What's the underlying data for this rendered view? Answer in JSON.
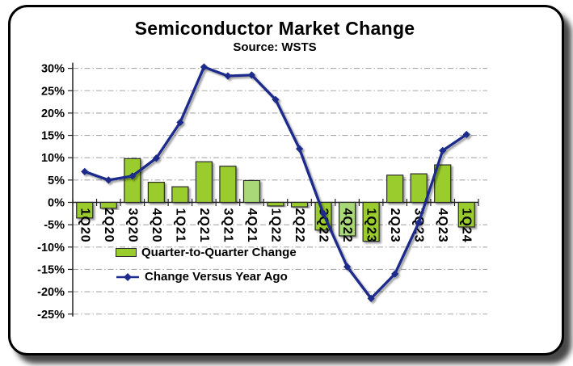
{
  "chart_data": {
    "type": "combo",
    "title": "Semiconductor Market Change",
    "subtitle": "Source: WSTS",
    "categories": [
      "1Q20",
      "2Q20",
      "3Q20",
      "4Q20",
      "1Q21",
      "2Q21",
      "3Q21",
      "4Q21",
      "1Q22",
      "2Q22",
      "3Q22",
      "4Q22",
      "1Q23",
      "2Q23",
      "3Q23",
      "4Q23",
      "1Q24"
    ],
    "series": [
      {
        "name": "Quarter-to-Quarter Change",
        "type": "bar",
        "values": [
          -3.5,
          -1.3,
          9.8,
          4.5,
          3.5,
          9.1,
          8.1,
          4.9,
          -0.8,
          -1.0,
          -6.2,
          -7.5,
          -8.7,
          6.1,
          6.4,
          8.4,
          -5.5
        ],
        "color": "#9ACC2E",
        "light_color": "#A8D877",
        "light_value_indexes": [
          7,
          11
        ],
        "border_color": "#2b2b2b"
      },
      {
        "name": "Change Versus Year Ago",
        "type": "line",
        "values": [
          6.9,
          5.0,
          5.9,
          9.9,
          17.9,
          30.3,
          28.3,
          28.5,
          23.0,
          12.0,
          -2.5,
          -14.4,
          -21.5,
          -16.0,
          -4.5,
          11.6,
          15.2
        ],
        "color": "#1F2C8C",
        "marker": "diamond"
      }
    ],
    "y_axis": {
      "min": -25,
      "max": 30,
      "step": 5,
      "tick_labels": [
        "30%",
        "25%",
        "20%",
        "15%",
        "10%",
        "5%",
        "0%",
        "-5%",
        "-10%",
        "-15%",
        "-20%",
        "-25%"
      ]
    },
    "grid": true,
    "gridline_color": "#a8a8a8",
    "axis_color": "#222222",
    "legend_position": "inside-left"
  }
}
